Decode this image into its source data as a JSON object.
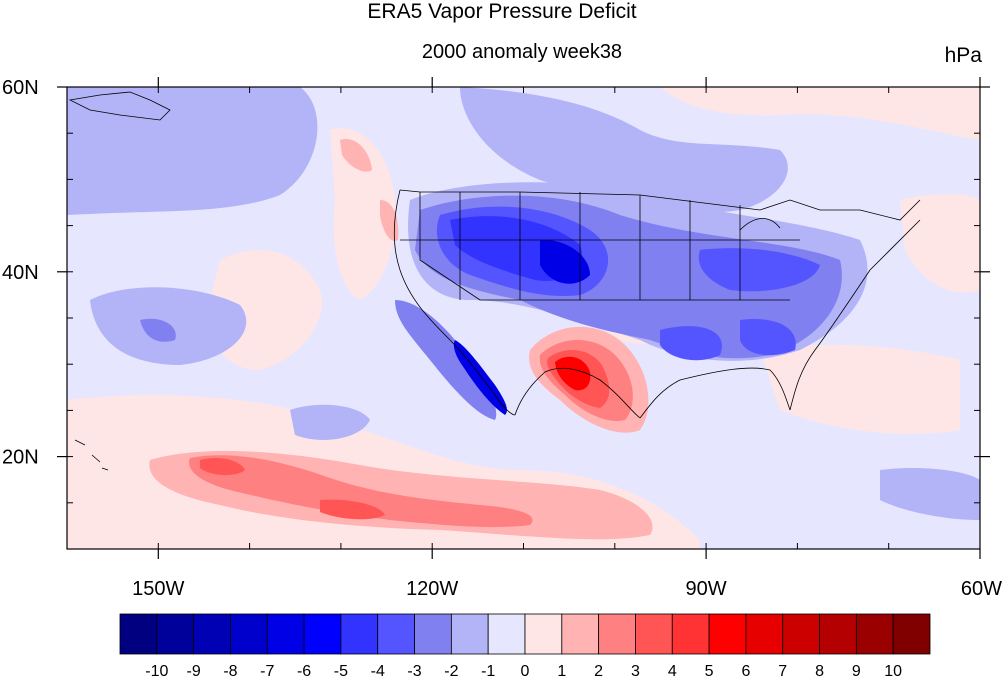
{
  "title": "ERA5 Vapor Pressure Deficit",
  "subtitle": "2000 anomaly week38",
  "units": "hPa",
  "map": {
    "lon_range": [
      -160,
      -60
    ],
    "lat_range": [
      10,
      60
    ],
    "lon_ticks": [
      {
        "value": -150,
        "label": "150W"
      },
      {
        "value": -120,
        "label": "120W"
      },
      {
        "value": -90,
        "label": "90W"
      },
      {
        "value": -60,
        "label": "60W"
      }
    ],
    "lat_ticks": [
      {
        "value": 60,
        "label": "60N"
      },
      {
        "value": 40,
        "label": "40N"
      },
      {
        "value": 20,
        "label": "20N"
      }
    ],
    "colorbar": {
      "levels": [
        "-10",
        "-9",
        "-8",
        "-7",
        "-6",
        "-5",
        "-4",
        "-3",
        "-2",
        "-1",
        "0",
        "1",
        "2",
        "3",
        "4",
        "5",
        "6",
        "7",
        "8",
        "9",
        "10"
      ],
      "colors": [
        "#000080",
        "#00009a",
        "#0000b4",
        "#0000cd",
        "#0000e6",
        "#0000ff",
        "#3333ff",
        "#5555ff",
        "#8080f0",
        "#b3b3f7",
        "#e6e6ff",
        "#ffe6e6",
        "#ffb3b3",
        "#ff8080",
        "#ff5555",
        "#ff3333",
        "#ff0000",
        "#e60000",
        "#cd0000",
        "#b40000",
        "#9a0000",
        "#800000"
      ]
    }
  }
}
